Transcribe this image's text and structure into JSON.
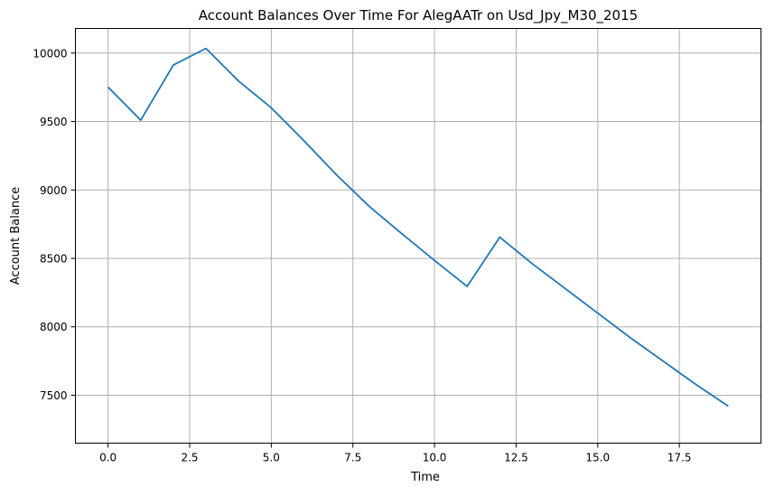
{
  "chart_data": {
    "type": "line",
    "title": "Account Balances Over Time For AlegAATr on Usd_Jpy_M30_2015",
    "xlabel": "Time",
    "ylabel": "Account Balance",
    "xlim": [
      -1,
      20
    ],
    "ylim": [
      7150,
      10180
    ],
    "grid": true,
    "x_ticks": [
      0.0,
      2.5,
      5.0,
      7.5,
      10.0,
      12.5,
      15.0,
      17.5
    ],
    "x_tick_labels": [
      "0.0",
      "2.5",
      "5.0",
      "7.5",
      "10.0",
      "12.5",
      "15.0",
      "17.5"
    ],
    "y_ticks": [
      7500,
      8000,
      8500,
      9000,
      9500,
      10000
    ],
    "y_tick_labels": [
      "7500",
      "8000",
      "8500",
      "9000",
      "9500",
      "10000"
    ],
    "series": [
      {
        "color": "#1f77b4",
        "x": [
          0,
          1,
          2,
          3,
          4,
          5,
          6,
          7,
          8,
          9,
          10,
          11,
          12,
          13,
          14,
          15,
          16,
          17,
          18,
          19
        ],
        "values": [
          9752,
          9510,
          9913,
          10034,
          9795,
          9600,
          9360,
          9110,
          8880,
          8680,
          8485,
          8295,
          8655,
          8460,
          8280,
          8100,
          7920,
          7750,
          7580,
          7420
        ]
      }
    ]
  }
}
